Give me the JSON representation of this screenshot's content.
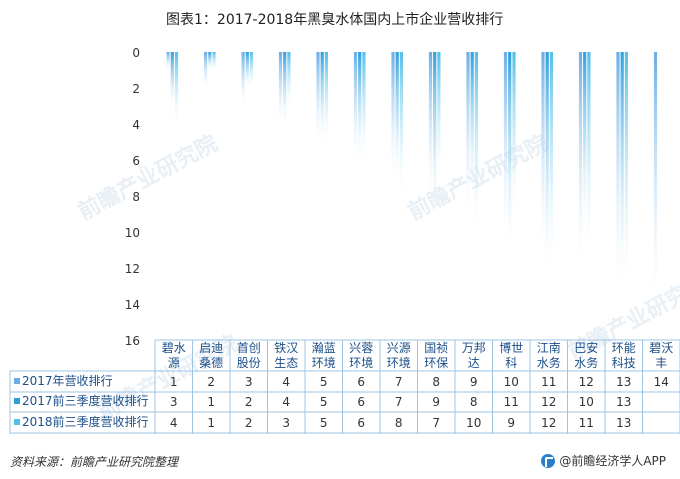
{
  "title": "图表1：2017-2018年黑臭水体国内上市企业营收排行",
  "source": "资料来源：前瞻产业研究院整理",
  "brand": "@前瞻经济学人APP",
  "watermark": "前瞻产业研究院",
  "colors": {
    "s2017": "#6aaee8",
    "s2017q3": "#2f9fdc",
    "s2018q3": "#52c0e8",
    "axis_text": "#333333",
    "table_line": "#9ec4e4"
  },
  "chart_data": {
    "type": "bar",
    "ylim": [
      0,
      16
    ],
    "y_inverted": true,
    "y_ticks": [
      0,
      2,
      4,
      6,
      8,
      10,
      12,
      14,
      16
    ],
    "categories": [
      [
        "碧水",
        "源"
      ],
      [
        "启迪",
        "桑德"
      ],
      [
        "首创",
        "股份"
      ],
      [
        "铁汉",
        "生态"
      ],
      [
        "瀚蓝",
        "环境"
      ],
      [
        "兴蓉",
        "环境"
      ],
      [
        "兴源",
        "环境"
      ],
      [
        "国祯",
        "环保"
      ],
      [
        "万邦",
        "达"
      ],
      [
        "博世",
        "科"
      ],
      [
        "江南",
        "水务"
      ],
      [
        "巴安",
        "水务"
      ],
      [
        "环能",
        "科技"
      ],
      [
        "碧沃",
        "丰"
      ]
    ],
    "series": [
      {
        "name": "2017年营收排行",
        "values": [
          1,
          2,
          3,
          4,
          5,
          6,
          7,
          8,
          9,
          10,
          11,
          12,
          13,
          14
        ]
      },
      {
        "name": "2017前三季度营收排行",
        "values": [
          3,
          1,
          2,
          4,
          5,
          6,
          7,
          9,
          8,
          11,
          12,
          10,
          13,
          null
        ]
      },
      {
        "name": "2018前三季度营收排行",
        "values": [
          4,
          1,
          2,
          3,
          5,
          6,
          8,
          7,
          10,
          9,
          12,
          11,
          13,
          null
        ]
      }
    ]
  }
}
